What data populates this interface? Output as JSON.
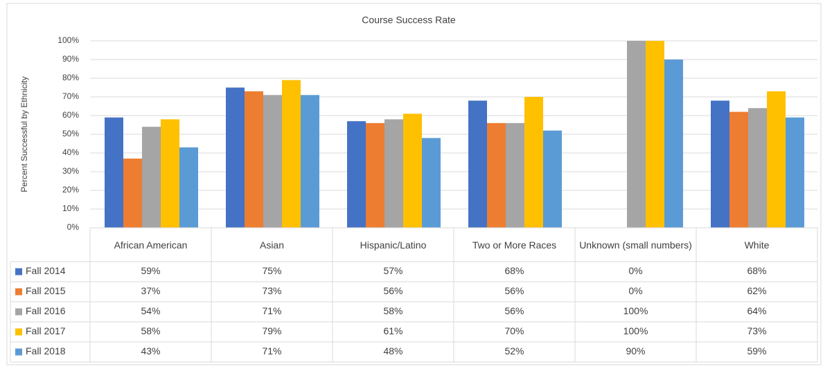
{
  "chart_data": {
    "type": "bar",
    "title": "Course Success Rate",
    "y_label": "Percent Successful by Ethnicity",
    "categories": [
      "African American",
      "Asian",
      "Hispanic/Latino",
      "Two or More Races",
      "Unknown (small numbers)",
      "White"
    ],
    "series": [
      {
        "name": "Fall 2014",
        "color": "#4472c4",
        "values": [
          59,
          75,
          57,
          68,
          0,
          68
        ],
        "value_labels": [
          "59%",
          "75%",
          "57%",
          "68%",
          "0%",
          "68%"
        ]
      },
      {
        "name": "Fall 2015",
        "color": "#ed7d31",
        "values": [
          37,
          73,
          56,
          56,
          0,
          62
        ],
        "value_labels": [
          "37%",
          "73%",
          "56%",
          "56%",
          "0%",
          "62%"
        ]
      },
      {
        "name": "Fall 2016",
        "color": "#a5a5a5",
        "values": [
          54,
          71,
          58,
          56,
          100,
          64
        ],
        "value_labels": [
          "54%",
          "71%",
          "58%",
          "56%",
          "100%",
          "64%"
        ]
      },
      {
        "name": "Fall 2017",
        "color": "#ffc000",
        "values": [
          58,
          79,
          61,
          70,
          100,
          73
        ],
        "value_labels": [
          "58%",
          "79%",
          "61%",
          "70%",
          "100%",
          "73%"
        ]
      },
      {
        "name": "Fall 2018",
        "color": "#5b9bd5",
        "values": [
          43,
          71,
          48,
          52,
          90,
          59
        ],
        "value_labels": [
          "43%",
          "71%",
          "48%",
          "52%",
          "90%",
          "59%"
        ]
      }
    ],
    "ylim": [
      0,
      100
    ],
    "yticks": [
      {
        "value": 0,
        "label": "0%"
      },
      {
        "value": 10,
        "label": "10%"
      },
      {
        "value": 20,
        "label": "20%"
      },
      {
        "value": 30,
        "label": "30%"
      },
      {
        "value": 40,
        "label": "40%"
      },
      {
        "value": 50,
        "label": "50%"
      },
      {
        "value": 60,
        "label": "60%"
      },
      {
        "value": 70,
        "label": "70%"
      },
      {
        "value": 80,
        "label": "80%"
      },
      {
        "value": 90,
        "label": "90%"
      },
      {
        "value": 100,
        "label": "100%"
      }
    ],
    "grid": true
  }
}
